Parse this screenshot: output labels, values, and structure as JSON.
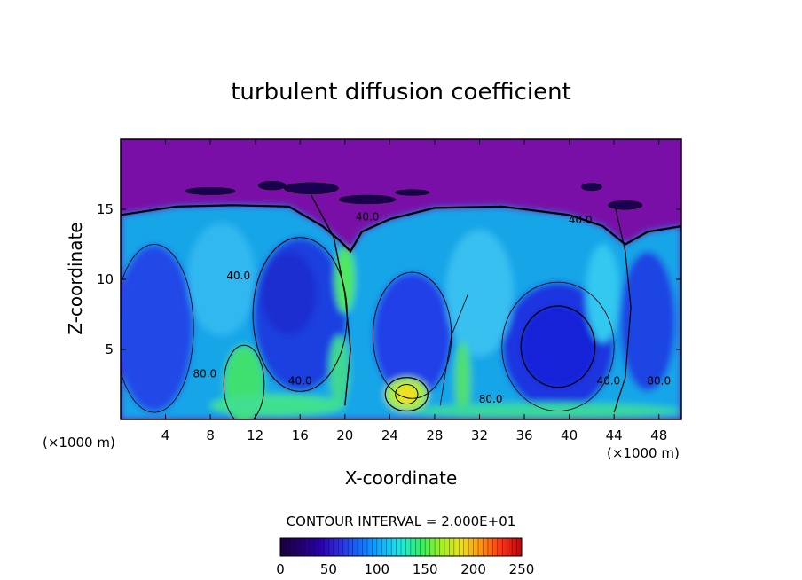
{
  "chart_data": {
    "type": "heatmap",
    "title": "turbulent diffusion coefficient",
    "xlabel": "X-coordinate",
    "ylabel": "Z-coordinate",
    "x_unit_left": "(×1000 m)",
    "x_unit_right": "(×1000 m)",
    "xlim": [
      0,
      50
    ],
    "ylim": [
      0,
      20
    ],
    "x_ticks": [
      4,
      8,
      12,
      16,
      20,
      24,
      28,
      32,
      36,
      40,
      44,
      48
    ],
    "y_ticks": [
      5,
      10,
      15
    ],
    "contour_interval_text": "CONTOUR INTERVAL = 2.000E+01",
    "contour_interval": 20,
    "contour_labels": [
      "40.0",
      "40.0",
      "40.0",
      "80.0",
      "80.0",
      "40.0",
      "40.0",
      "80.0"
    ],
    "colorbar": {
      "ticks": [
        0,
        50,
        100,
        150,
        200,
        250
      ],
      "range": [
        0,
        250
      ],
      "colors": [
        "#1a0040",
        "#220070",
        "#2a00b0",
        "#3030e0",
        "#1070ff",
        "#10b0ff",
        "#20e8e0",
        "#30f060",
        "#a0f020",
        "#f0e020",
        "#ff9010",
        "#ff3010",
        "#c00010"
      ]
    },
    "background_value_color": "#7a0fa8",
    "regions": [
      {
        "name": "upper-layer",
        "z_range": [
          14,
          20
        ],
        "value": "low"
      },
      {
        "name": "left-eddy",
        "center": [
          3,
          5.5
        ],
        "value": 20
      },
      {
        "name": "mid-left-eddy",
        "center": [
          15,
          7
        ],
        "value": 20
      },
      {
        "name": "center-eddy",
        "center": [
          26,
          6
        ],
        "value": 20
      },
      {
        "name": "right-eddy",
        "center": [
          39,
          5
        ],
        "value": 20
      },
      {
        "name": "hot-spot",
        "center": [
          25.5,
          1.5
        ],
        "value": 180
      },
      {
        "name": "updraft-left",
        "center": [
          11,
          3
        ],
        "value": 120
      },
      {
        "name": "updraft-center",
        "center": [
          20,
          10
        ],
        "value": 140
      }
    ]
  }
}
